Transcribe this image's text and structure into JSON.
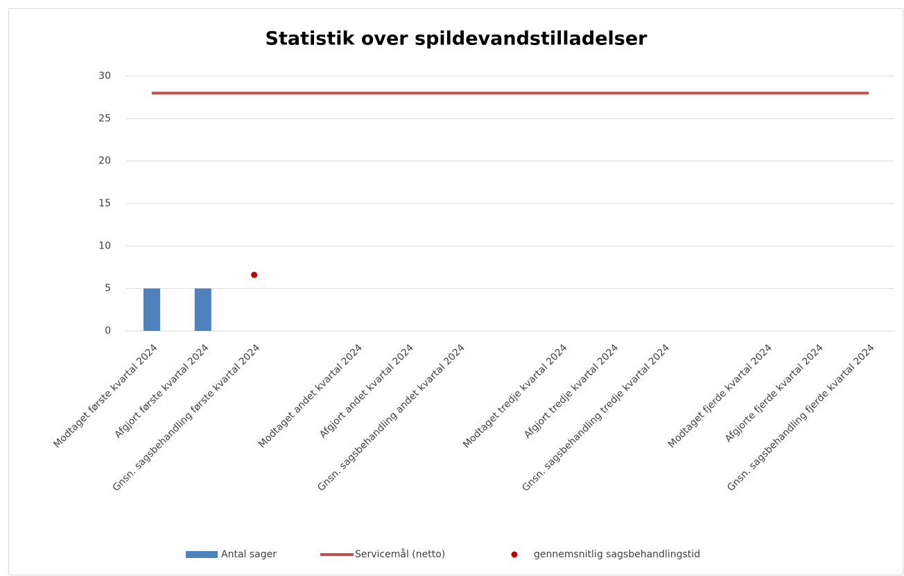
{
  "chart_data": {
    "type": "combo",
    "title": "Statistik over spildevandstilladelser",
    "categories": [
      "Modtaget første kvartal  2024",
      "Afgjort første kvartal 2024",
      "Gnsn. sagsbehandling første kvartal 2024",
      null,
      "Modtaget andet kvartal  2024",
      "Afgjort andet kvartal 2024",
      "Gnsn. sagsbehandling andet kvartal 2024",
      null,
      "Modtaget tredje kvartal 2024",
      "Afgjort tredje kvartal 2024",
      "Gnsn. sagsbehandling tredje kvartal 2024",
      null,
      "Modtaget fjerde kvartal 2024",
      "Afgjorte fjerde kvartal 2024",
      "Gnsn. sagsbehandling fjerde kvartal 2024"
    ],
    "series": [
      {
        "name": "Antal sager",
        "type": "bar",
        "color": "#4f81bd",
        "values": [
          5,
          5,
          null,
          null,
          null,
          null,
          null,
          null,
          null,
          null,
          null,
          null,
          null,
          null,
          null
        ]
      },
      {
        "name": "Servicemål (netto)",
        "type": "line",
        "color": "#c0504d",
        "values": [
          28,
          28,
          28,
          28,
          28,
          28,
          28,
          28,
          28,
          28,
          28,
          28,
          28,
          28,
          28
        ]
      },
      {
        "name": "gennemsnitlig sagsbehandlingstid",
        "type": "scatter",
        "color": "#c00000",
        "values": [
          null,
          null,
          6.6,
          null,
          null,
          null,
          null,
          null,
          null,
          null,
          null,
          null,
          null,
          null,
          null
        ]
      }
    ],
    "ylim": [
      0,
      30
    ],
    "yticks": [
      0,
      5,
      10,
      15,
      20,
      25,
      30
    ],
    "grid": true,
    "legend": "bottom"
  }
}
